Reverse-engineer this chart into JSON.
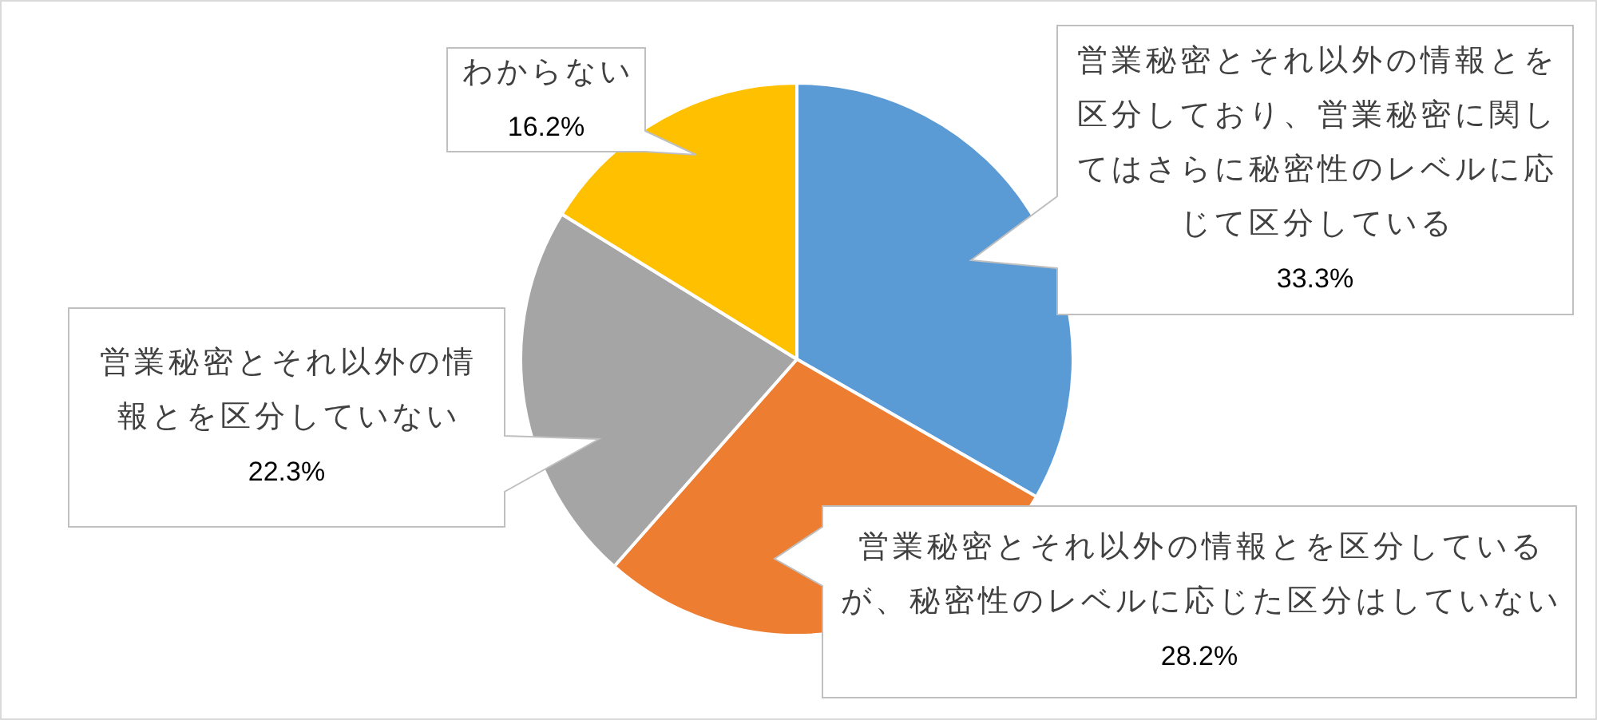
{
  "chart_data": {
    "type": "pie",
    "categories": [
      "営業秘密とそれ以外の情報とを区分しており、営業秘密に関してはさらに秘密性のレベルに応じて区分している",
      "営業秘密とそれ以外の情報とを区分しているが、秘密性のレベルに応じた区分はしていない",
      "営業秘密とそれ以外の情報とを区分していない",
      "わからない"
    ],
    "values": [
      33.3,
      28.2,
      22.3,
      16.2
    ],
    "value_labels": [
      "33.3%",
      "28.2%",
      "22.3%",
      "16.2%"
    ],
    "colors": [
      "#5b9bd5",
      "#ed7d31",
      "#a5a5a5",
      "#ffc000"
    ]
  }
}
